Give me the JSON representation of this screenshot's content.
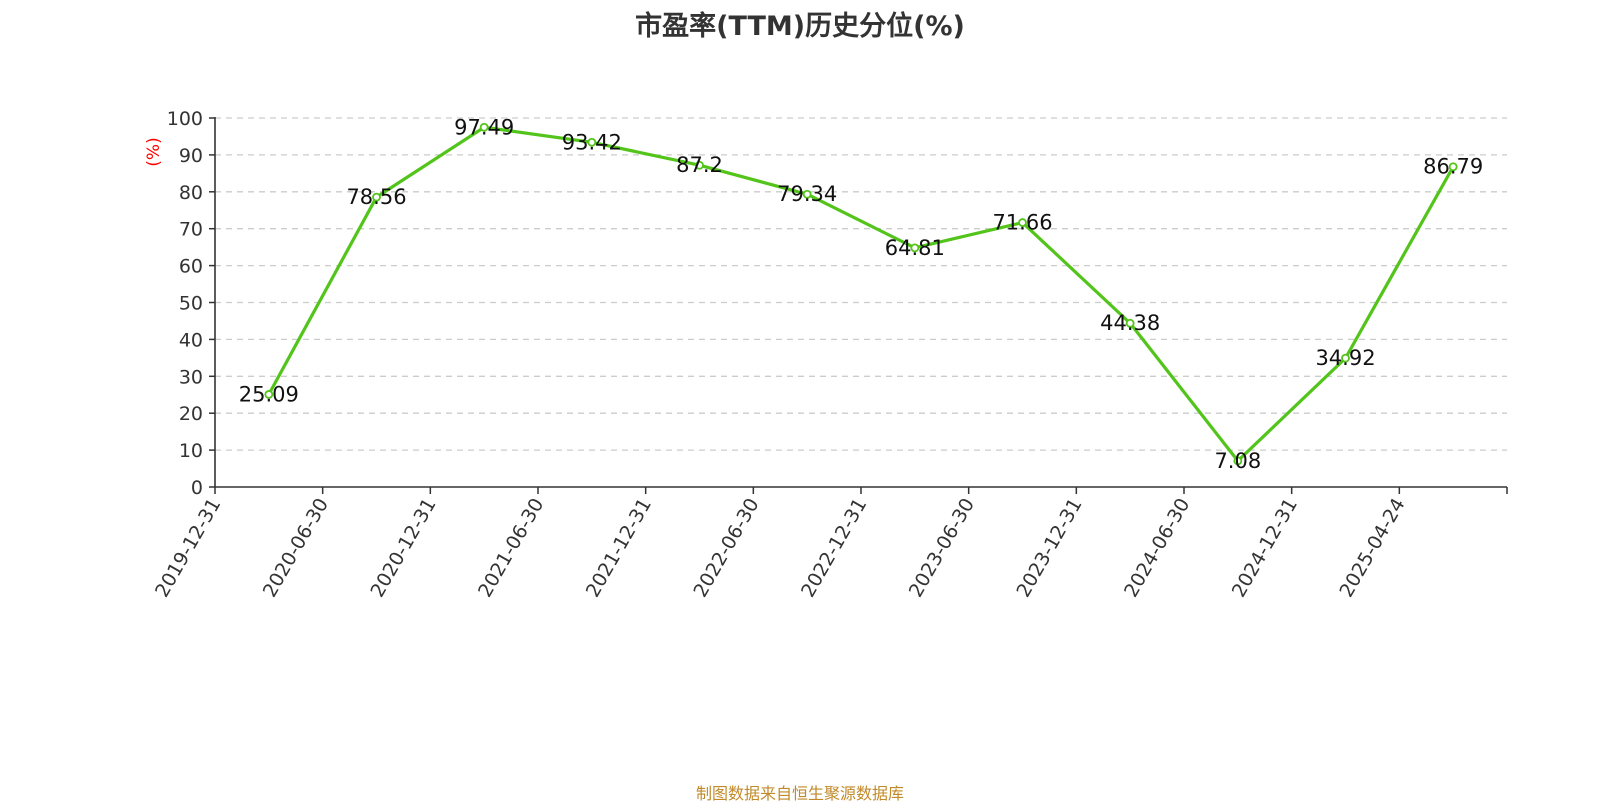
{
  "colors": {
    "line": "#52c41a",
    "ylabel": "#ff0000",
    "footer": "#c08a2a",
    "grid": "#cccccc",
    "axis": "#333333"
  },
  "footer": {
    "source": "制图数据来自恒生聚源数据库"
  },
  "chart_data": {
    "type": "line",
    "title": "市盈率(TTM)历史分位(%)",
    "xlabel": "",
    "ylabel": "(%)",
    "categories": [
      "2019-12-31",
      "2020-06-30",
      "2020-12-31",
      "2021-06-30",
      "2021-12-31",
      "2022-06-30",
      "2022-12-31",
      "2023-06-30",
      "2023-12-31",
      "2024-06-30",
      "2024-12-31",
      "2025-04-24"
    ],
    "series": [
      {
        "values": [
          25.09,
          78.56,
          97.49,
          93.42,
          87.2,
          79.34,
          64.81,
          71.66,
          44.38,
          7.08,
          34.92,
          86.79
        ]
      }
    ],
    "data_labels": [
      "25.09",
      "78.56",
      "97.49",
      "93.42",
      "87.2",
      "79.34",
      "64.81",
      "71.66",
      "44.38",
      "7.08",
      "34.92",
      "86.79"
    ],
    "ylim": [
      0,
      100
    ],
    "yticks": [
      0,
      10,
      20,
      30,
      40,
      50,
      60,
      70,
      80,
      90,
      100
    ],
    "grid": true,
    "legend": "none"
  }
}
